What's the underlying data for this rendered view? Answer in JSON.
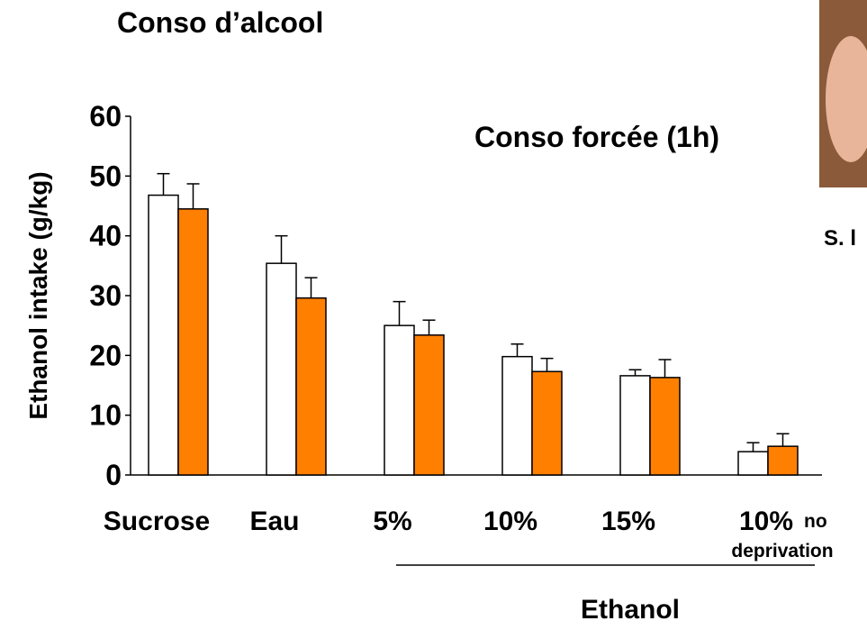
{
  "chart_data": {
    "type": "bar",
    "title": "Conso d’alcool",
    "annotation": "Conso forcée (1h)",
    "credit": "S. l",
    "ylabel": "Ethanol intake (g/kg)",
    "xgroup_label": "Ethanol",
    "categories": [
      "Sucrose",
      "Eau",
      "5%",
      "10%",
      "15%",
      "10%"
    ],
    "category_note": [
      "no",
      "deprivation"
    ],
    "series": [
      {
        "color": "#ffffff",
        "values": [
          46.8,
          35.4,
          25.0,
          19.8,
          16.6,
          3.9
        ],
        "errors": [
          3.6,
          4.6,
          4.0,
          2.1,
          1.0,
          1.5
        ]
      },
      {
        "color": "#ff7f00",
        "values": [
          44.5,
          29.6,
          23.4,
          17.3,
          16.3,
          4.8
        ],
        "errors": [
          4.2,
          3.4,
          2.5,
          2.2,
          3.0,
          2.1
        ]
      }
    ],
    "ylim": [
      0,
      60
    ],
    "yticks": [
      0,
      10,
      20,
      30,
      40,
      50,
      60
    ],
    "grid": false
  }
}
